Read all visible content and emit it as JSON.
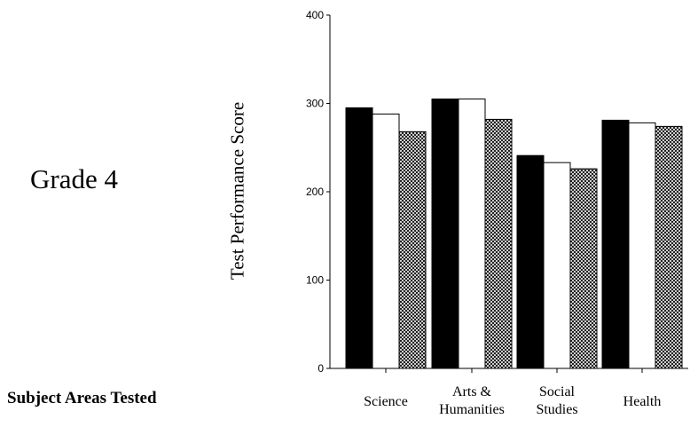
{
  "page": {
    "grade_label": "Grade 4",
    "subject_areas_label": "Subject Areas Tested"
  },
  "colors": {
    "series_1": "#000000",
    "series_2": "#ffffff",
    "series_3": "crosshatch",
    "axis": "#000000"
  },
  "chart_data": {
    "type": "bar",
    "title": "",
    "xlabel": "",
    "ylabel": "Test Performance Score",
    "ylim": [
      0,
      400
    ],
    "yticks": [
      0,
      100,
      200,
      300,
      400
    ],
    "grid": false,
    "legend": "none",
    "categories": [
      [
        "Science"
      ],
      [
        "Arts &",
        "Humanities"
      ],
      [
        "Social",
        "Studies"
      ],
      [
        "Health"
      ]
    ],
    "series": [
      {
        "values": [
          295,
          305,
          241,
          281
        ]
      },
      {
        "values": [
          288,
          305,
          233,
          278
        ]
      },
      {
        "values": [
          268,
          282,
          226,
          274
        ]
      }
    ]
  }
}
